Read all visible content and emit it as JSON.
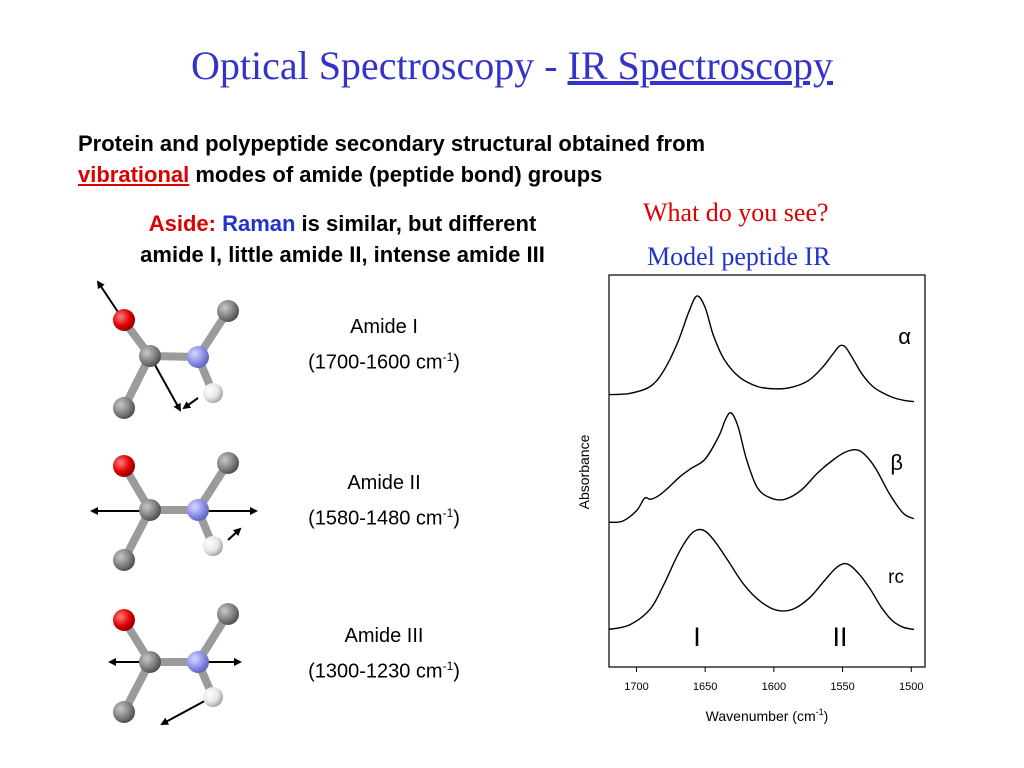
{
  "title": {
    "main": "Optical Spectroscopy - ",
    "sub": "IR Spectroscopy"
  },
  "intro": {
    "line1": "Protein and polypeptide secondary structural obtained from",
    "highlight": "vibrational",
    "rest": " modes of amide (peptide bond) groups"
  },
  "aside": {
    "label": "Aside:",
    "raman": "Raman",
    "text1": " is similar, but different",
    "text2": "amide I, little amide II, intense amide III"
  },
  "question": {
    "line1": "What do you see?",
    "line2": "Model peptide IR"
  },
  "amides": [
    {
      "name": "Amide I",
      "range": "(1700-1600 cm",
      "sup": "-1",
      "close": ")"
    },
    {
      "name": "Amide II",
      "range": "(1580-1480 cm",
      "sup": "-1",
      "close": ")"
    },
    {
      "name": "Amide III",
      "range": "(1300-1230 cm",
      "sup": "-1",
      "close": ")"
    }
  ],
  "chart_data": {
    "type": "line",
    "xlabel": "Wavenumber (cm",
    "xlabel_sup": "-1",
    "xlabel_close": ")",
    "ylabel": "Absorbance",
    "x_ticks": [
      1700,
      1650,
      1600,
      1550,
      1500
    ],
    "xlim": [
      1720,
      1490
    ],
    "x_reversed": true,
    "series": [
      {
        "name": "α",
        "x": [
          1720,
          1705,
          1690,
          1680,
          1670,
          1662,
          1656,
          1650,
          1644,
          1636,
          1625,
          1612,
          1600,
          1588,
          1575,
          1565,
          1557,
          1552,
          1548,
          1543,
          1536,
          1528,
          1520,
          1512,
          1505,
          1498
        ],
        "y": [
          0.15,
          0.16,
          0.22,
          0.36,
          0.6,
          0.86,
          1.0,
          0.9,
          0.66,
          0.45,
          0.3,
          0.22,
          0.2,
          0.21,
          0.27,
          0.38,
          0.5,
          0.57,
          0.56,
          0.47,
          0.33,
          0.22,
          0.16,
          0.12,
          0.1,
          0.09
        ]
      },
      {
        "name": "β",
        "x": [
          1720,
          1710,
          1700,
          1694,
          1690,
          1684,
          1676,
          1668,
          1660,
          1650,
          1640,
          1635,
          1631,
          1626,
          1620,
          1612,
          1602,
          1592,
          1580,
          1568,
          1556,
          1548,
          1540,
          1534,
          1526,
          1516,
          1506,
          1498
        ],
        "y": [
          0.05,
          0.06,
          0.15,
          0.26,
          0.25,
          0.28,
          0.36,
          0.45,
          0.52,
          0.6,
          0.8,
          0.95,
          1.0,
          0.88,
          0.6,
          0.35,
          0.26,
          0.25,
          0.33,
          0.48,
          0.6,
          0.66,
          0.68,
          0.64,
          0.52,
          0.3,
          0.13,
          0.08
        ]
      },
      {
        "name": "rc",
        "x": [
          1720,
          1705,
          1690,
          1680,
          1670,
          1662,
          1656,
          1650,
          1643,
          1634,
          1622,
          1610,
          1598,
          1586,
          1574,
          1564,
          1556,
          1550,
          1545,
          1538,
          1530,
          1522,
          1514,
          1506,
          1498
        ],
        "y": [
          0.12,
          0.16,
          0.3,
          0.52,
          0.78,
          0.94,
          1.0,
          0.99,
          0.9,
          0.74,
          0.52,
          0.37,
          0.29,
          0.3,
          0.4,
          0.54,
          0.65,
          0.7,
          0.69,
          0.61,
          0.48,
          0.32,
          0.2,
          0.14,
          0.12
        ]
      }
    ],
    "band_labels": [
      "I",
      "II"
    ]
  },
  "colors": {
    "title": "#3333cc",
    "red": "#dd0000",
    "atom_o": "#dd0000",
    "atom_n": "#8a8ee8",
    "atom_c": "#808080",
    "atom_h": "#e6e6e6"
  }
}
